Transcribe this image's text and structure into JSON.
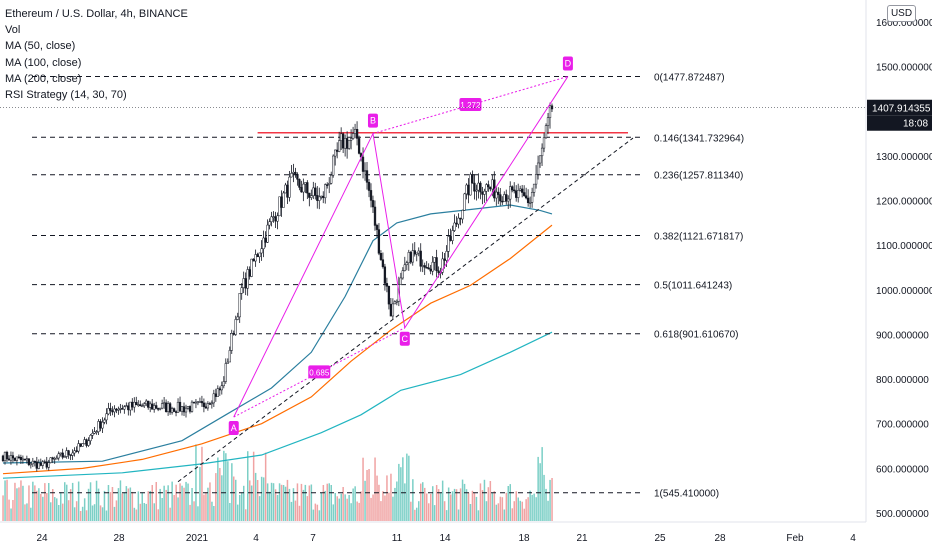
{
  "legend": {
    "symbol": "Ethereum / U.S. Dollar, 4h, BINANCE",
    "vol": "Vol",
    "ma50": "MA (50, close)",
    "ma100": "MA (100, close)",
    "ma200": "MA (200, close)",
    "rsi": "RSI Strategy (14, 30, 70)"
  },
  "currency": "USD",
  "colors": {
    "up": "#26a69a",
    "down": "#131722",
    "bull_vol": "#7ccfc6",
    "bear_vol": "#f0a3a3",
    "ma50": "#2b7f9f",
    "ma100": "#ff6d00",
    "ma200": "#22b5c1",
    "pattern": "#e91ee9",
    "resistance": "#f23645",
    "text": "#131722"
  },
  "chart_data": {
    "type": "candlestick",
    "title": "Ethereum / U.S. Dollar, 4h, BINANCE",
    "ylabel": "USD",
    "ylim": [
      485,
      1660
    ],
    "y_ticks": [
      "1600.000000",
      "1500.000000",
      "1400.000000",
      "1300.000000",
      "1200.000000",
      "1100.000000",
      "1000.000000",
      "900.000000",
      "800.000000",
      "700.000000",
      "600.000000",
      "500.000000"
    ],
    "x_ticks": [
      "24",
      "28",
      "2021",
      "4",
      "7",
      "11",
      "14",
      "18",
      "21",
      "25",
      "28",
      "Feb",
      "4"
    ],
    "last_price": "1407.914355",
    "countdown": "18:08",
    "price_path": [
      {
        "bar": 0,
        "price": 628
      },
      {
        "bar": 20,
        "price": 606
      },
      {
        "bar": 40,
        "price": 650
      },
      {
        "bar": 55,
        "price": 735
      },
      {
        "bar": 70,
        "price": 740
      },
      {
        "bar": 90,
        "price": 735
      },
      {
        "bar": 100,
        "price": 740
      },
      {
        "bar": 110,
        "price": 780
      },
      {
        "bar": 120,
        "price": 1000
      },
      {
        "bar": 135,
        "price": 1155
      },
      {
        "bar": 145,
        "price": 1245
      },
      {
        "bar": 160,
        "price": 1200
      },
      {
        "bar": 170,
        "price": 1330
      },
      {
        "bar": 178,
        "price": 1340
      },
      {
        "bar": 185,
        "price": 1200
      },
      {
        "bar": 195,
        "price": 950
      },
      {
        "bar": 205,
        "price": 1080
      },
      {
        "bar": 220,
        "price": 1050
      },
      {
        "bar": 235,
        "price": 1240
      },
      {
        "bar": 250,
        "price": 1220
      },
      {
        "bar": 265,
        "price": 1200
      },
      {
        "bar": 272,
        "price": 1330
      },
      {
        "bar": 276,
        "price": 1408
      }
    ],
    "moving_averages": [
      {
        "name": "MA (50, close)",
        "color": "#2b7f9f",
        "points": [
          [
            0,
            612
          ],
          [
            50,
            616
          ],
          [
            90,
            662
          ],
          [
            112,
            720
          ],
          [
            135,
            780
          ],
          [
            155,
            860
          ],
          [
            172,
            985
          ],
          [
            186,
            1110
          ],
          [
            198,
            1150
          ],
          [
            215,
            1170
          ],
          [
            235,
            1180
          ],
          [
            255,
            1190
          ],
          [
            270,
            1178
          ],
          [
            276,
            1170
          ]
        ]
      },
      {
        "name": "MA (100, close)",
        "color": "#ff6d00",
        "points": [
          [
            0,
            588
          ],
          [
            40,
            600
          ],
          [
            70,
            620
          ],
          [
            100,
            655
          ],
          [
            130,
            700
          ],
          [
            155,
            760
          ],
          [
            175,
            840
          ],
          [
            195,
            910
          ],
          [
            215,
            970
          ],
          [
            235,
            1010
          ],
          [
            255,
            1070
          ],
          [
            276,
            1145
          ]
        ]
      },
      {
        "name": "MA (200, close)",
        "color": "#22b5c1",
        "points": [
          [
            0,
            578
          ],
          [
            60,
            590
          ],
          [
            100,
            610
          ],
          [
            130,
            630
          ],
          [
            160,
            680
          ],
          [
            180,
            720
          ],
          [
            200,
            775
          ],
          [
            230,
            810
          ],
          [
            255,
            860
          ],
          [
            276,
            905
          ]
        ]
      }
    ],
    "fibonacci": [
      {
        "level": "0",
        "price": "1477.872487",
        "value": 1477.87
      },
      {
        "level": "0.146",
        "price": "1341.732964",
        "value": 1341.73
      },
      {
        "level": "0.236",
        "price": "1257.811340",
        "value": 1257.81
      },
      {
        "level": "0.382",
        "price": "1121.671817",
        "value": 1121.67
      },
      {
        "level": "0.5",
        "price": "1011.641243",
        "value": 1011.64
      },
      {
        "level": "0.618",
        "price": "901.610670",
        "value": 901.61
      },
      {
        "level": "1",
        "price": "545.410000",
        "value": 545.41
      }
    ],
    "harmonic_pattern": {
      "points": [
        {
          "label": "A",
          "price": 715
        },
        {
          "label": "B",
          "price": 1350
        },
        {
          "label": "C",
          "price": 915
        },
        {
          "label": "D",
          "price": 1478
        }
      ],
      "ratios": [
        "1.272",
        "0.685"
      ]
    },
    "resistance_price": 1352
  }
}
